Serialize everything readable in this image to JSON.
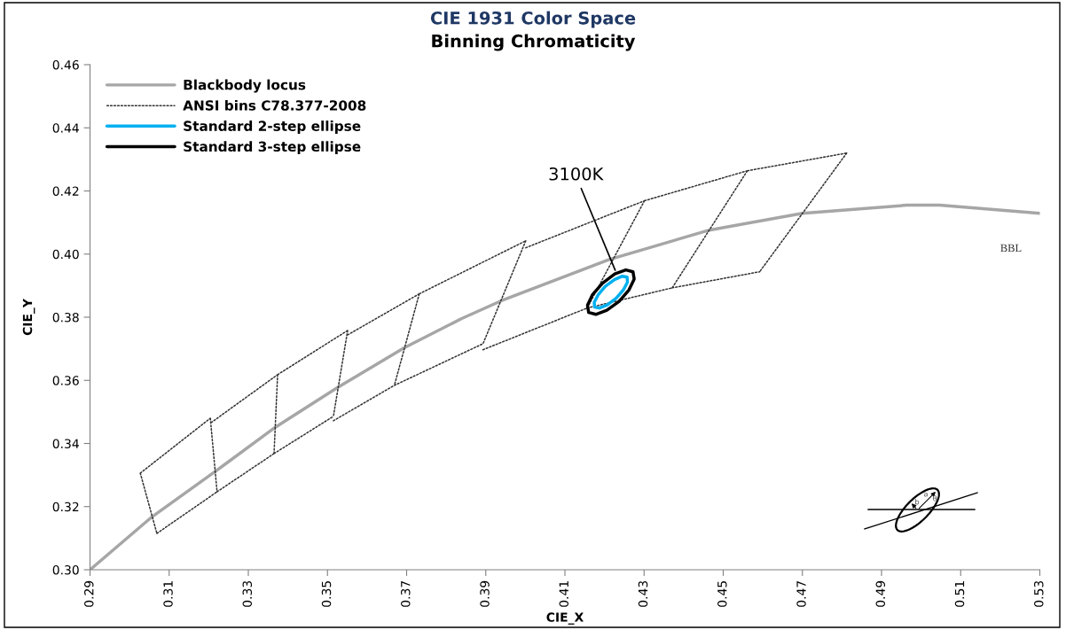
{
  "chart_data": {
    "type": "line",
    "title": "CIE 1931 Color Space",
    "subtitle": "Binning Chromaticity",
    "xlabel": "CIE_X",
    "ylabel": "CIE_Y",
    "xlim": [
      0.29,
      0.53
    ],
    "ylim": [
      0.3,
      0.46
    ],
    "xticks": [
      0.29,
      0.31,
      0.33,
      0.35,
      0.37,
      0.39,
      0.41,
      0.43,
      0.45,
      0.47,
      0.49,
      0.51,
      0.53
    ],
    "yticks": [
      {
        "value": 0.3,
        "label": "0.30"
      },
      0.32,
      0.34,
      0.36,
      0.38,
      {
        "value": 0.4,
        "label": "0.40"
      },
      0.42,
      0.44,
      0.46
    ],
    "legend": "top left",
    "annotations": [
      {
        "text": "3100K",
        "x": 0.4227,
        "y": 0.3949
      },
      "BBL",
      "a",
      "b",
      "θ"
    ],
    "series": [
      {
        "name": "Blackbody locus",
        "type": "line",
        "color": "#a6a6a6",
        "line_style": "solid",
        "x": [
          0.29,
          0.3058,
          0.3217,
          0.3369,
          0.3524,
          0.3694,
          0.3838,
          0.3939,
          0.4212,
          0.4465,
          0.47,
          0.4964,
          0.5047,
          0.53
        ],
        "values": [
          0.3,
          0.3169,
          0.3312,
          0.3452,
          0.3576,
          0.3703,
          0.3795,
          0.3852,
          0.3983,
          0.4076,
          0.4129,
          0.4155,
          0.4155,
          0.4129
        ]
      },
      {
        "name": "ANSI bins C78.377-2008",
        "type": "line",
        "color": "#333333",
        "line_style": "dotted",
        "x": [
          0.3027,
          0.3204,
          null,
          0.3069,
          0.3221,
          null,
          0.3204,
          0.3221,
          null,
          0.3206,
          0.3374,
          null,
          0.3221,
          0.3365,
          null,
          0.3374,
          0.3365,
          null,
          0.3374,
          0.3551,
          null,
          0.3365,
          0.3515,
          null,
          0.3551,
          0.3515,
          null,
          0.3551,
          0.3732,
          null,
          0.3515,
          0.3669,
          null,
          0.3732,
          0.3669,
          null,
          0.3732,
          0.4001,
          null,
          0.3669,
          0.3893,
          null,
          0.4001,
          0.3893,
          null,
          0.4001,
          0.4301,
          null,
          0.3893,
          0.4156,
          null,
          0.4301,
          0.4156,
          null,
          0.4301,
          0.4561,
          null,
          0.4156,
          0.4371,
          null,
          0.4561,
          0.4371,
          null,
          0.4561,
          0.4812,
          null,
          0.4371,
          0.4592,
          null,
          0.4812,
          0.4592,
          null,
          0.3027,
          0.3069
        ],
        "values": [
          0.3306,
          0.348,
          null,
          0.3115,
          0.3247,
          null,
          0.348,
          0.3247,
          null,
          0.3466,
          0.3618,
          null,
          0.3247,
          0.3368,
          null,
          0.3618,
          0.3368,
          null,
          0.3618,
          0.3758,
          null,
          0.3368,
          0.3486,
          null,
          0.3758,
          0.3486,
          null,
          0.3744,
          0.3874,
          null,
          0.3472,
          0.3584,
          null,
          0.3874,
          0.3584,
          null,
          0.3874,
          0.4042,
          null,
          0.3584,
          0.3716,
          null,
          0.4042,
          0.3716,
          null,
          0.402,
          0.4169,
          null,
          0.3697,
          0.3829,
          null,
          0.4169,
          0.3829,
          null,
          0.4169,
          0.4264,
          null,
          0.3829,
          0.3893,
          null,
          0.4264,
          0.3893,
          null,
          0.4264,
          0.432,
          null,
          0.3893,
          0.3944,
          null,
          0.432,
          0.3944,
          null,
          0.3306,
          0.3115
        ]
      },
      {
        "name": "Standard 2-step ellipse",
        "type": "line",
        "color": "#00b0f0",
        "line_style": "solid",
        "x": [
          0.4174,
          0.4184,
          0.4202,
          0.4225,
          0.4245,
          0.4257,
          0.4258,
          null,
          0.4174,
          0.4175,
          0.4187,
          0.4207,
          0.423,
          0.4248,
          0.4258
        ],
        "values": [
          0.3847,
          0.3871,
          0.3898,
          0.3919,
          0.393,
          0.3927,
          0.3911,
          null,
          0.3847,
          0.3832,
          0.3829,
          0.3839,
          0.3861,
          0.3887,
          0.3911
        ]
      },
      {
        "name": "Standard 3-step ellipse",
        "type": "line",
        "color": "#000000",
        "line_style": "solid",
        "x": [
          0.4157,
          0.417,
          0.4195,
          0.4226,
          0.4254,
          0.4272,
          0.4275,
          null,
          0.4157,
          0.416,
          0.4178,
          0.4206,
          0.4237,
          0.4262,
          0.4275
        ],
        "values": [
          0.3838,
          0.3872,
          0.3908,
          0.3937,
          0.395,
          0.3944,
          0.3921,
          null,
          0.3838,
          0.3815,
          0.3809,
          0.3822,
          0.385,
          0.3887,
          0.3921
        ]
      }
    ]
  }
}
